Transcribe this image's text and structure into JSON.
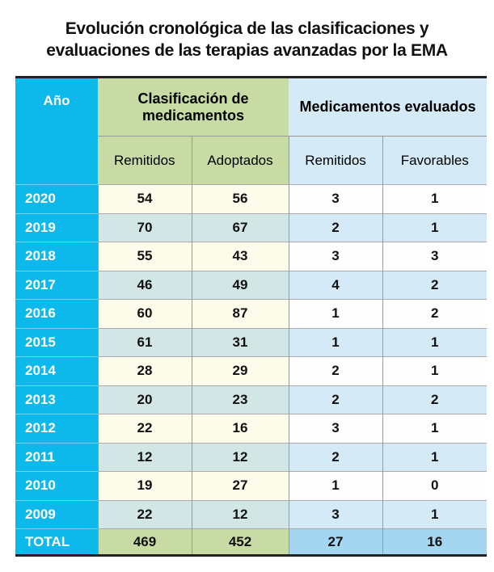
{
  "title_line1": "Evolución cronológica de las clasificaciones y",
  "title_line2": "evaluaciones de las terapias avanzadas por la EMA",
  "colors": {
    "year": "#0db8ea",
    "green": "#c8dba4",
    "blue_header": "#d4eaf7",
    "total_blue": "#a4d6f2"
  },
  "chart_data": {
    "type": "table",
    "title": "Evolución cronológica de las clasificaciones y evaluaciones de las terapias avanzadas por la EMA",
    "year_header": "Año",
    "groups": [
      {
        "label": "Clasificación de medicamentos",
        "columns": [
          "Remitidos",
          "Adoptados"
        ]
      },
      {
        "label": "Medicamentos evaluados",
        "columns": [
          "Remitidos",
          "Favorables"
        ]
      }
    ],
    "rows": [
      {
        "year": "2020",
        "values": [
          "54",
          "56",
          "3",
          "1"
        ]
      },
      {
        "year": "2019",
        "values": [
          "70",
          "67",
          "2",
          "1"
        ]
      },
      {
        "year": "2018",
        "values": [
          "55",
          "43",
          "3",
          "3"
        ]
      },
      {
        "year": "2017",
        "values": [
          "46",
          "49",
          "4",
          "2"
        ]
      },
      {
        "year": "2016",
        "values": [
          "60",
          "87",
          "1",
          "2"
        ]
      },
      {
        "year": "2015",
        "values": [
          "61",
          "31",
          "1",
          "1"
        ]
      },
      {
        "year": "2014",
        "values": [
          "28",
          "29",
          "2",
          "1"
        ]
      },
      {
        "year": "2013",
        "values": [
          "20",
          "23",
          "2",
          "2"
        ]
      },
      {
        "year": "2012",
        "values": [
          "22",
          "16",
          "3",
          "1"
        ]
      },
      {
        "year": "2011",
        "values": [
          "12",
          "12",
          "2",
          "1"
        ]
      },
      {
        "year": "2010",
        "values": [
          "19",
          "27",
          "1",
          "0"
        ]
      },
      {
        "year": "2009",
        "values": [
          "22",
          "12",
          "3",
          "1"
        ]
      }
    ],
    "total": {
      "label": "TOTAL",
      "values": [
        "469",
        "452",
        "27",
        "16"
      ]
    }
  }
}
